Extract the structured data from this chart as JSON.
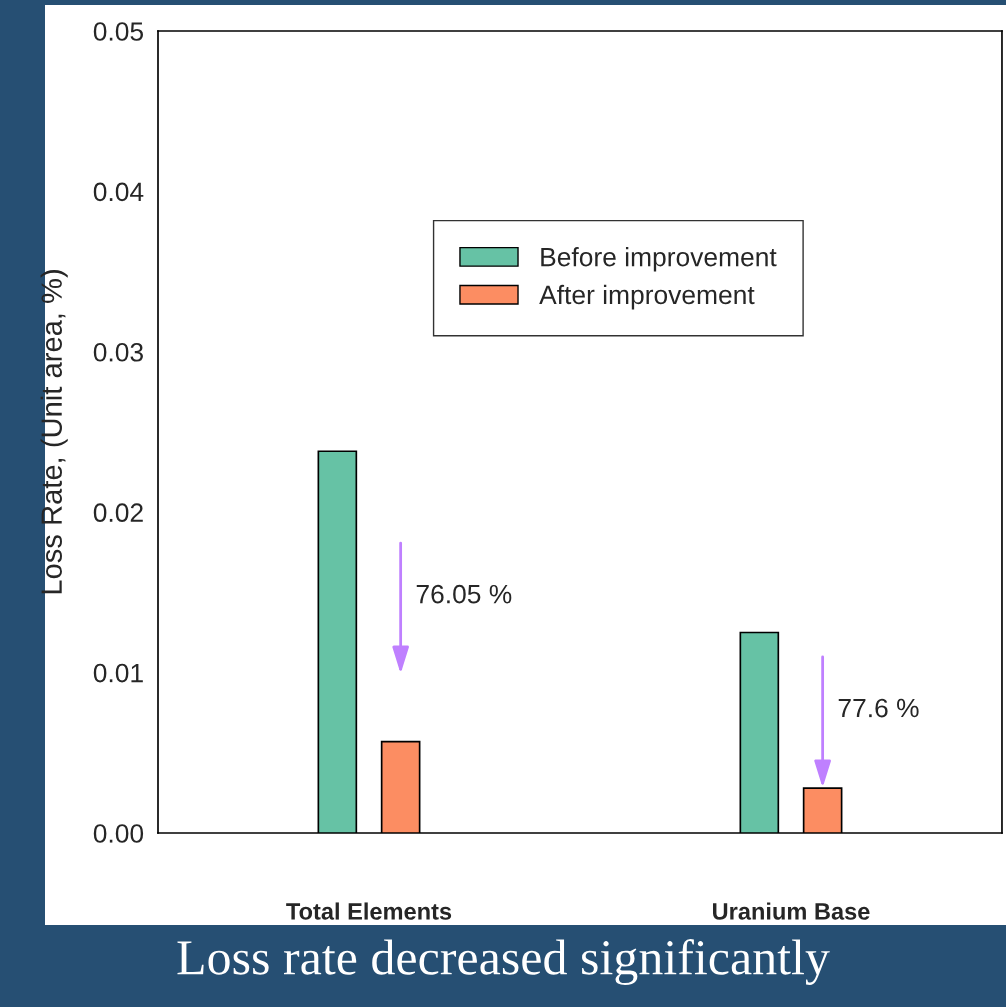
{
  "chart_data": {
    "type": "bar",
    "categories": [
      "Total Elements",
      "Uranium Base"
    ],
    "series": [
      {
        "name": "Before improvement",
        "color": "#66c2a5",
        "values": [
          0.0238,
          0.0125
        ]
      },
      {
        "name": "After improvement",
        "color": "#fc8d62",
        "values": [
          0.0057,
          0.0028
        ]
      }
    ],
    "ylabel": "Loss Rate, (Unit area, %)",
    "ylim": [
      0,
      0.05
    ],
    "yticks": [
      {
        "value": 0,
        "label": "0.00"
      },
      0.01,
      0.02,
      0.03,
      0.04,
      0.05
    ],
    "legend": "top right",
    "grid": false,
    "annotations": [
      "76.05 %",
      "77.6 %",
      "Loss rate decreased significantly"
    ]
  }
}
